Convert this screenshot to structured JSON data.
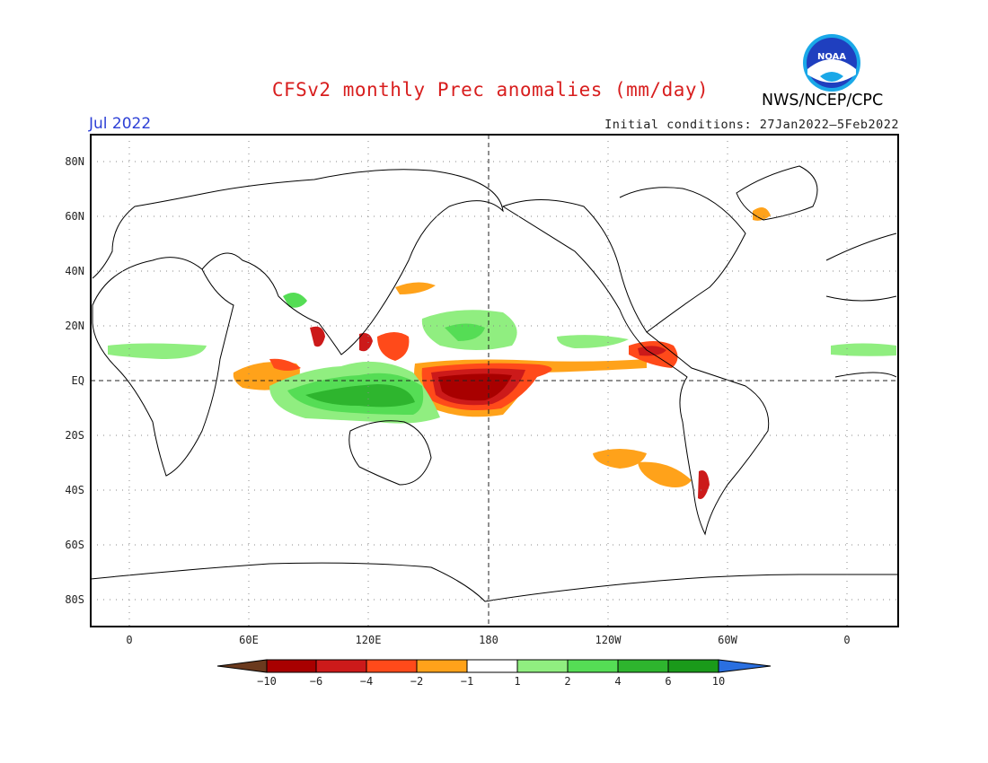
{
  "header": {
    "title": "CFSv2 monthly Prec anomalies (mm/day)",
    "month": "Jul 2022",
    "initial_conditions": "Initial conditions: 27Jan2022–5Feb2022",
    "agency": "NWS/NCEP/CPC",
    "logo_text": "NOAA"
  },
  "colors": {
    "title": "#d81e1e",
    "month": "#2c3fd6",
    "land_outline": "#000000",
    "grid": "#888888"
  },
  "axes": {
    "lat_labels": [
      "80N",
      "60N",
      "40N",
      "20N",
      "EQ",
      "20S",
      "40S",
      "60S",
      "80S"
    ],
    "lon_labels": [
      "0",
      "60E",
      "120E",
      "180",
      "120W",
      "60W",
      "0"
    ]
  },
  "legend": {
    "boundaries": [
      "−10",
      "−6",
      "−4",
      "−2",
      "−1",
      "1",
      "2",
      "4",
      "6",
      "10"
    ],
    "bin_colors": [
      "#6b3a1e",
      "#a80000",
      "#cc1a1a",
      "#ff4a1a",
      "#ffa21a",
      "#ffffff",
      "#90ee80",
      "#55dd55",
      "#2eb52e",
      "#1a9a1a",
      "#2a6fe0"
    ]
  }
}
